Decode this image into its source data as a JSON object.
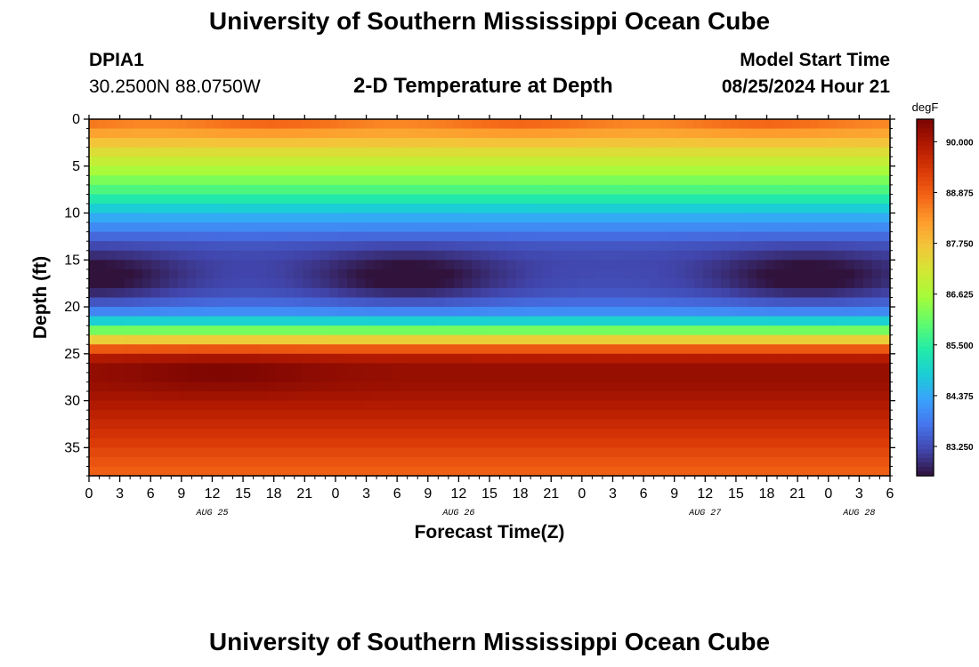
{
  "page": {
    "top_title": "University of Southern Mississippi Ocean Cube",
    "bottom_title": "University of Southern Mississippi Ocean Cube",
    "station_id": "DPIA1",
    "station_coords": "30.2500N  88.0750W",
    "chart_title": "2-D Temperature at Depth",
    "start_label": "Model Start Time",
    "start_value": "08/25/2024 Hour 21"
  },
  "chart_data": {
    "type": "heatmap",
    "title": "2-D Temperature at Depth",
    "xlabel": "Forecast Time(Z)",
    "ylabel": "Depth (ft)",
    "x_tick_labels": [
      "0",
      "3",
      "6",
      "9",
      "12",
      "15",
      "18",
      "21",
      "0",
      "3",
      "6",
      "9",
      "12",
      "15",
      "18",
      "21",
      "0",
      "3",
      "6",
      "9",
      "12",
      "15",
      "18",
      "21",
      "0",
      "3",
      "6"
    ],
    "x_date_labels": [
      {
        "label": "AUG 25",
        "hour_offset": 12
      },
      {
        "label": "AUG 26",
        "hour_offset": 36
      },
      {
        "label": "AUG 27",
        "hour_offset": 60
      },
      {
        "label": "AUG 28",
        "hour_offset": 75
      }
    ],
    "xlim_hours": [
      0,
      78
    ],
    "y_ticks": [
      0,
      5,
      10,
      15,
      20,
      25,
      30,
      35
    ],
    "ylim": [
      0,
      38
    ],
    "y_inverted": true,
    "colorbar": {
      "unit": "degF",
      "ticks": [
        "90.000",
        "88.875",
        "87.750",
        "86.625",
        "85.500",
        "84.375",
        "83.250"
      ],
      "range": [
        82.6,
        90.5
      ]
    },
    "colormap": [
      "#30123b",
      "#4145ab",
      "#4675ed",
      "#39a2fc",
      "#1bcfd4",
      "#24eca6",
      "#61fc6c",
      "#a4fc3b",
      "#d1e834",
      "#f3c63a",
      "#fe9b2d",
      "#f36315",
      "#d93806",
      "#b11901",
      "#7a0402"
    ],
    "depth_profile": [
      {
        "depth": 0,
        "temp": 88.6
      },
      {
        "depth": 1,
        "temp": 88.3
      },
      {
        "depth": 2,
        "temp": 87.9
      },
      {
        "depth": 3,
        "temp": 87.5
      },
      {
        "depth": 4,
        "temp": 87.1
      },
      {
        "depth": 5,
        "temp": 86.8
      },
      {
        "depth": 6,
        "temp": 86.4
      },
      {
        "depth": 7,
        "temp": 86.0
      },
      {
        "depth": 8,
        "temp": 85.6
      },
      {
        "depth": 9,
        "temp": 85.1
      },
      {
        "depth": 10,
        "temp": 84.6
      },
      {
        "depth": 11,
        "temp": 84.2
      },
      {
        "depth": 12,
        "temp": 83.8
      },
      {
        "depth": 13,
        "temp": 83.4
      },
      {
        "depth": 14,
        "temp": 83.2
      },
      {
        "depth": 15,
        "temp": 83.0
      },
      {
        "depth": 16,
        "temp": 82.9
      },
      {
        "depth": 17,
        "temp": 82.9
      },
      {
        "depth": 18,
        "temp": 83.0
      },
      {
        "depth": 19,
        "temp": 83.3
      },
      {
        "depth": 20,
        "temp": 83.7
      },
      {
        "depth": 21,
        "temp": 84.3
      },
      {
        "depth": 22,
        "temp": 85.5
      },
      {
        "depth": 23,
        "temp": 86.8
      },
      {
        "depth": 24,
        "temp": 88.3
      },
      {
        "depth": 25,
        "temp": 89.6
      },
      {
        "depth": 26,
        "temp": 90.2
      },
      {
        "depth": 28,
        "temp": 90.2
      },
      {
        "depth": 30,
        "temp": 90.0
      },
      {
        "depth": 32,
        "temp": 89.7
      },
      {
        "depth": 34,
        "temp": 89.4
      },
      {
        "depth": 36,
        "temp": 89.1
      },
      {
        "depth": 38,
        "temp": 88.8
      }
    ],
    "cold_core_centers_hours": [
      0,
      31,
      70
    ],
    "warm_core": {
      "center_hour": 13,
      "center_depth": 27,
      "peak_temp": 90.45
    },
    "grid": false
  }
}
